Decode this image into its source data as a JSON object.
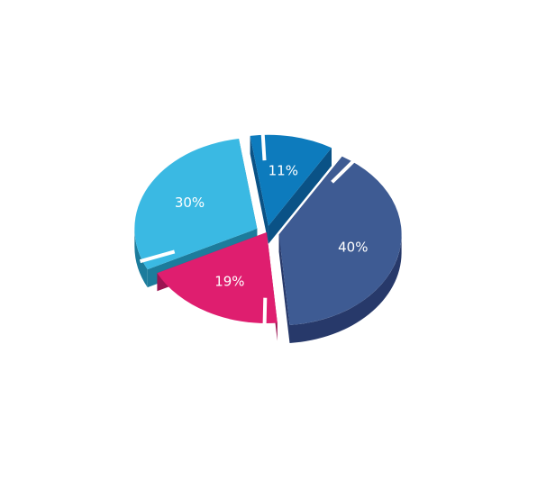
{
  "chart_data": {
    "type": "pie",
    "style": "3d-exploded",
    "title": "",
    "slices": [
      {
        "label": "40%",
        "value": 40,
        "color": "#3e5b93",
        "side_color": "#27396a"
      },
      {
        "label": "19%",
        "value": 19,
        "color": "#df1e6f",
        "side_color": "#9b1452"
      },
      {
        "label": "30%",
        "value": 30,
        "color": "#3ab9e3",
        "side_color": "#1c7c9c"
      },
      {
        "label": "11%",
        "value": 11,
        "color": "#0d7bbd",
        "side_color": "#0a5286"
      }
    ],
    "legend": "none",
    "separator_color": "#ffffff"
  }
}
